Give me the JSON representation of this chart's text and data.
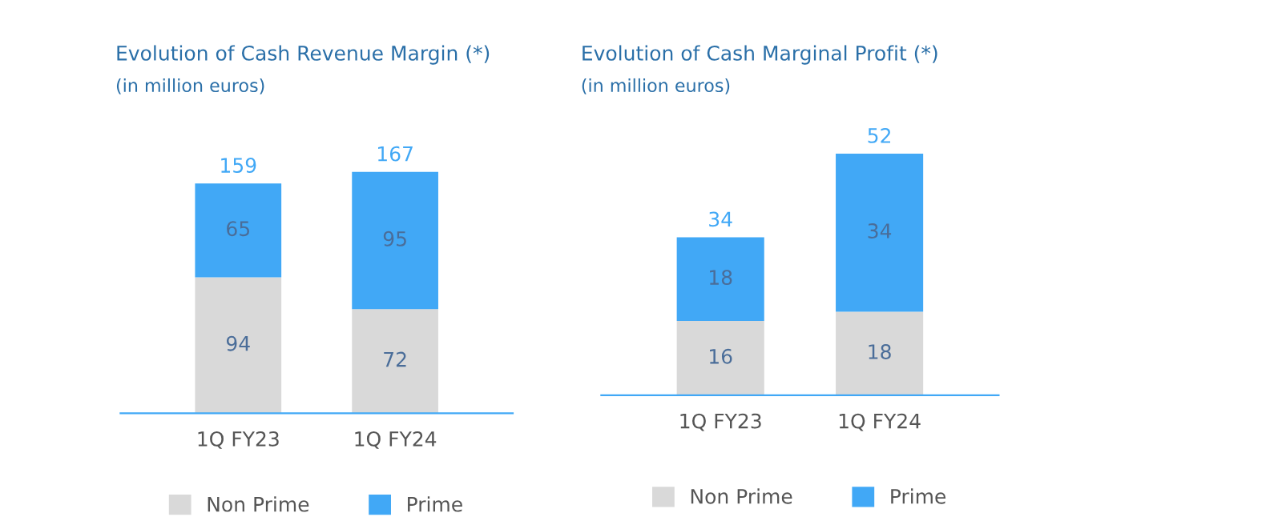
{
  "chart_data": [
    {
      "type": "bar",
      "title": "Evolution of Cash Revenue Margin (*)",
      "subtitle": "(in million euros)",
      "categories": [
        "1Q FY23",
        "1Q FY24"
      ],
      "stacked": true,
      "data_labels": true,
      "totals": [
        "159",
        "167"
      ],
      "tick_labels": "x",
      "legend": "bottom",
      "grid": false,
      "series": [
        {
          "name": "Non Prime",
          "color": "#d9d9d9",
          "values": [
            94,
            72
          ]
        },
        {
          "name": "Prime",
          "color": "#41a8f6",
          "values": [
            65,
            95
          ]
        }
      ]
    },
    {
      "type": "bar",
      "title": "Evolution of Cash Marginal Profit (*)",
      "subtitle": "(in million euros)",
      "categories": [
        "1Q FY23",
        "1Q FY24"
      ],
      "stacked": true,
      "data_labels": true,
      "totals": [
        "34",
        "52"
      ],
      "tick_labels": "x",
      "legend": "bottom",
      "grid": false,
      "series": [
        {
          "name": "Non Prime",
          "color": "#d9d9d9",
          "values": [
            16,
            18
          ]
        },
        {
          "name": "Prime",
          "color": "#41a8f6",
          "values": [
            18,
            34
          ]
        }
      ]
    }
  ]
}
